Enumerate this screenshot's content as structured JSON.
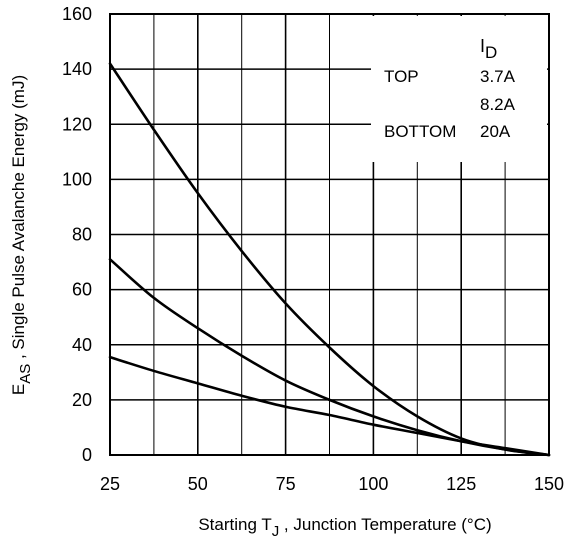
{
  "chart_data": {
    "type": "line",
    "xlabel": {
      "pre": "Starting T",
      "sub": "J",
      "post": " , Junction Temperature (°C)"
    },
    "ylabel": {
      "pre": "E",
      "sub": "AS",
      "post": " , Single Pulse Avalanche Energy (mJ)"
    },
    "xlim": [
      25,
      150
    ],
    "ylim": [
      0,
      160
    ],
    "x_ticks": [
      25,
      50,
      75,
      100,
      125,
      150
    ],
    "y_ticks": [
      0,
      20,
      40,
      60,
      80,
      100,
      120,
      140,
      160
    ],
    "x_minor_step": 12.5,
    "y_minor_step": 20,
    "grid": true,
    "legend": {
      "placement": "top-right",
      "header": {
        "main": "I",
        "sub": "D"
      },
      "rows": [
        {
          "label": "TOP",
          "value": "3.7A"
        },
        {
          "label": "",
          "value": "8.2A"
        },
        {
          "label": "BOTTOM",
          "value": "20A"
        }
      ]
    },
    "series": [
      {
        "name": "3.7A",
        "x": [
          25,
          37.5,
          50,
          62.5,
          75,
          87.5,
          100,
          112.5,
          125,
          137.5,
          150
        ],
        "y": [
          142,
          118,
          95,
          74,
          55,
          39,
          25,
          14,
          6,
          2,
          0
        ]
      },
      {
        "name": "8.2A",
        "x": [
          25,
          37.5,
          50,
          62.5,
          75,
          87.5,
          100,
          112.5,
          125,
          137.5,
          150
        ],
        "y": [
          71,
          57,
          46,
          36,
          27,
          20,
          14,
          9,
          5,
          2,
          0
        ]
      },
      {
        "name": "20A",
        "x": [
          25,
          37.5,
          50,
          62.5,
          75,
          87.5,
          100,
          112.5,
          125,
          137.5,
          150
        ],
        "y": [
          35.5,
          30.5,
          26,
          21.5,
          17.5,
          14.5,
          11,
          8,
          5,
          2.5,
          0
        ]
      }
    ]
  }
}
